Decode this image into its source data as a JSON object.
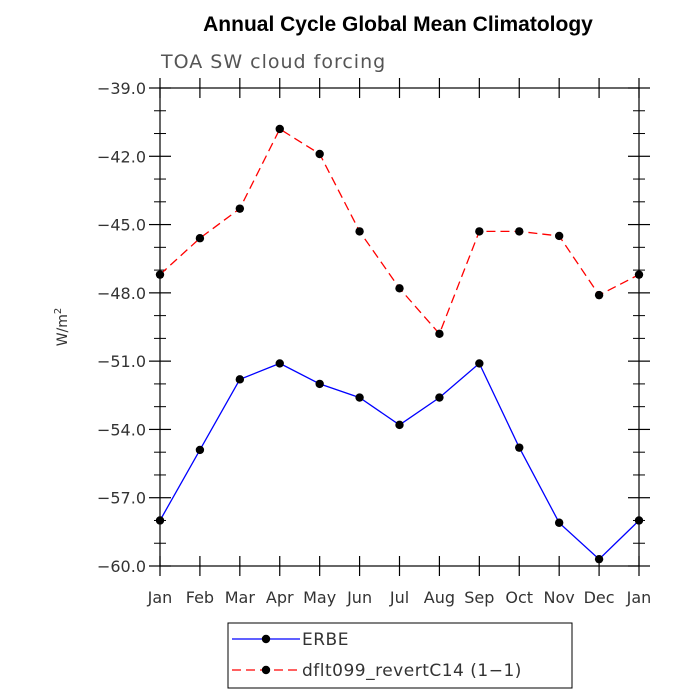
{
  "chart_data": {
    "type": "line",
    "title": "Annual Cycle Global Mean Climatology",
    "subtitle": "TOA SW cloud forcing",
    "xlabel": "",
    "ylabel": "W/m",
    "ylabel_superscript": "2",
    "categories": [
      "Jan",
      "Feb",
      "Mar",
      "Apr",
      "May",
      "Jun",
      "Jul",
      "Aug",
      "Sep",
      "Oct",
      "Nov",
      "Dec",
      "Jan"
    ],
    "ylim": [
      -60.0,
      -39.0
    ],
    "yticks": [
      -39.0,
      -42.0,
      -45.0,
      -48.0,
      -51.0,
      -54.0,
      -57.0,
      -60.0
    ],
    "ytick_labels": [
      "−39.0",
      "−42.0",
      "−45.0",
      "−48.0",
      "−51.0",
      "−54.0",
      "−57.0",
      "−60.0"
    ],
    "series": [
      {
        "name": "ERBE",
        "color": "#0000ff",
        "style": "solid",
        "values": [
          -58.0,
          -54.9,
          -51.8,
          -51.1,
          -52.0,
          -52.6,
          -53.8,
          -52.6,
          -51.1,
          -54.8,
          -58.1,
          -59.7,
          -58.0
        ]
      },
      {
        "name": "dflt099_revertC14 (1−1)",
        "color": "#ff0000",
        "style": "dashed",
        "values": [
          -47.2,
          -45.6,
          -44.3,
          -40.8,
          -41.9,
          -45.3,
          -47.8,
          -49.8,
          -45.3,
          -45.3,
          -45.5,
          -48.1,
          -47.2
        ]
      }
    ]
  }
}
